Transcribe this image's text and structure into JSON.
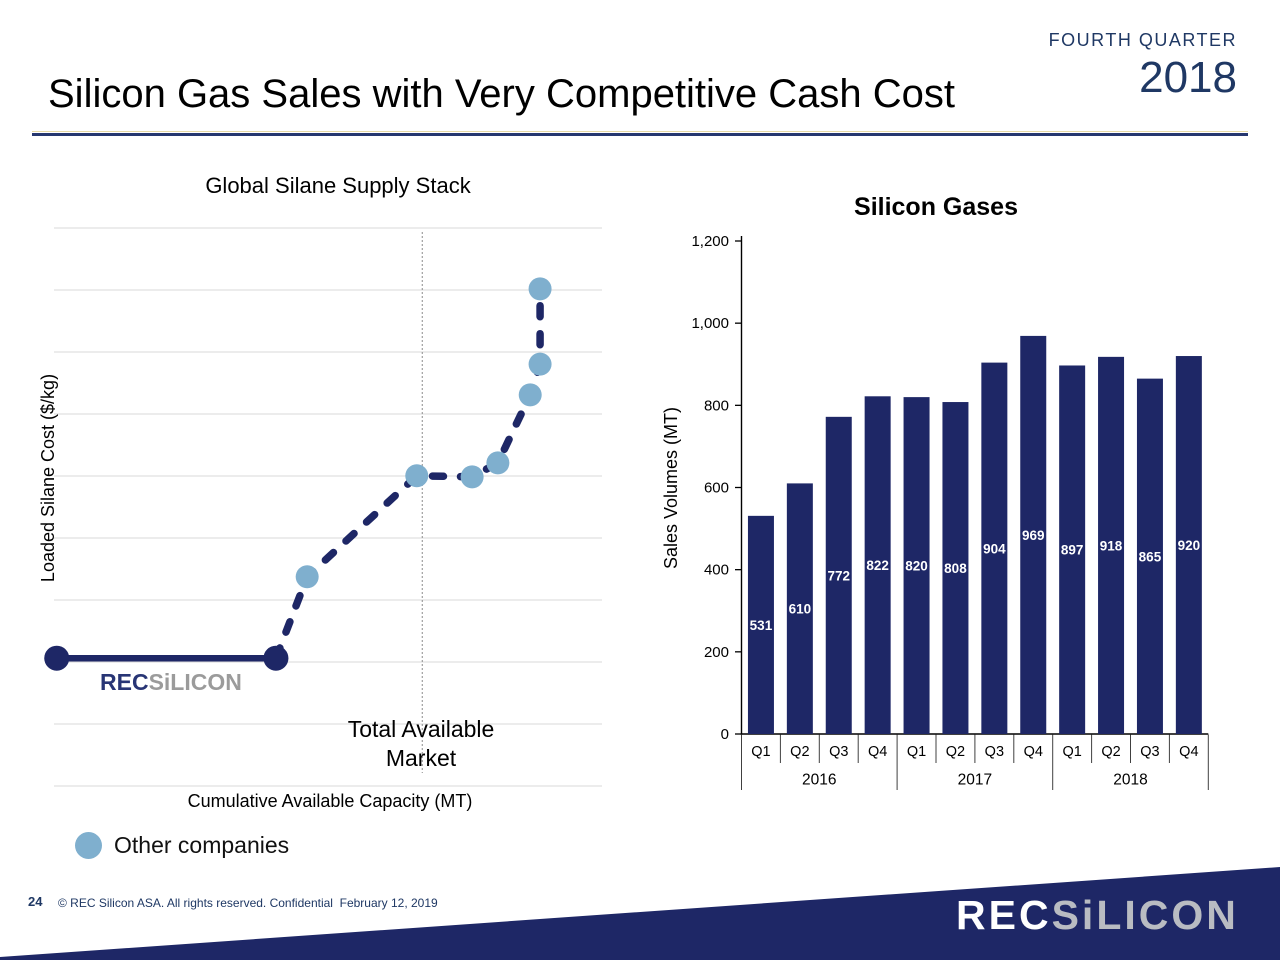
{
  "header": {
    "eyebrow": "FOURTH QUARTER",
    "year": "2018",
    "title": "Silicon Gas Sales with Very Competitive Cash Cost"
  },
  "footer": {
    "page_number": "24",
    "copyright": "© REC Silicon ASA. All rights reserved. Confidential  February 12, 2019"
  },
  "logo": {
    "part1": "REC",
    "part2": "SiLICON"
  },
  "legend": {
    "label": "Other companies",
    "marker_color": "#7FAFCE"
  },
  "colors": {
    "navy": "#1E2766",
    "light_blue": "#7FAFCE",
    "gridline": "#D9D9D9",
    "navy_text": "#1F3864",
    "watermark_gray": "#9B9B9B",
    "axis_black": "#000000"
  },
  "chart_data": [
    {
      "id": "supply_stack",
      "type": "scatter",
      "title": "Global Silane Supply Stack",
      "xlabel": "Cumulative Available Capacity (MT)",
      "ylabel": "Loaded Silane Cost ($/kg)",
      "annotation_lines": [
        "Total Available",
        "Market"
      ],
      "market_line_x": 67.2,
      "units": "percent of plot extent (no numeric scale shown on axes)",
      "grid": "horizontal",
      "series": [
        {
          "name": "REC Silicon",
          "style": "solid",
          "points": [
            {
              "x": 0.5,
              "y": 22.9
            },
            {
              "x": 40.5,
              "y": 22.9
            }
          ]
        },
        {
          "name": "Other companies",
          "style": "dashed",
          "points": [
            {
              "x": 46.2,
              "y": 37.5
            },
            {
              "x": 66.2,
              "y": 55.6
            },
            {
              "x": 76.3,
              "y": 55.4
            },
            {
              "x": 81.0,
              "y": 57.9
            },
            {
              "x": 86.9,
              "y": 70.1
            },
            {
              "x": 88.7,
              "y": 75.6
            },
            {
              "x": 88.7,
              "y": 89.1
            }
          ]
        }
      ]
    },
    {
      "id": "silicon_gases",
      "type": "bar",
      "title": "Silicon Gases",
      "ylabel": "Sales Volumes (MT)",
      "ylim": [
        0,
        1200
      ],
      "yticks": [
        0,
        200,
        400,
        600,
        800,
        1000,
        1200
      ],
      "ytick_labels": [
        "0",
        "200",
        "400",
        "600",
        "800",
        "1,000",
        "1,200"
      ],
      "categories": [
        "Q1",
        "Q2",
        "Q3",
        "Q4",
        "Q1",
        "Q2",
        "Q3",
        "Q4",
        "Q1",
        "Q2",
        "Q3",
        "Q4"
      ],
      "year_groups": [
        {
          "label": "2016",
          "quarters": 4
        },
        {
          "label": "2017",
          "quarters": 4
        },
        {
          "label": "2018",
          "quarters": 4
        }
      ],
      "values": [
        531,
        610,
        772,
        822,
        820,
        808,
        904,
        969,
        897,
        918,
        865,
        920
      ],
      "label_position": "center",
      "legend_position": "none",
      "grid": "off"
    }
  ]
}
